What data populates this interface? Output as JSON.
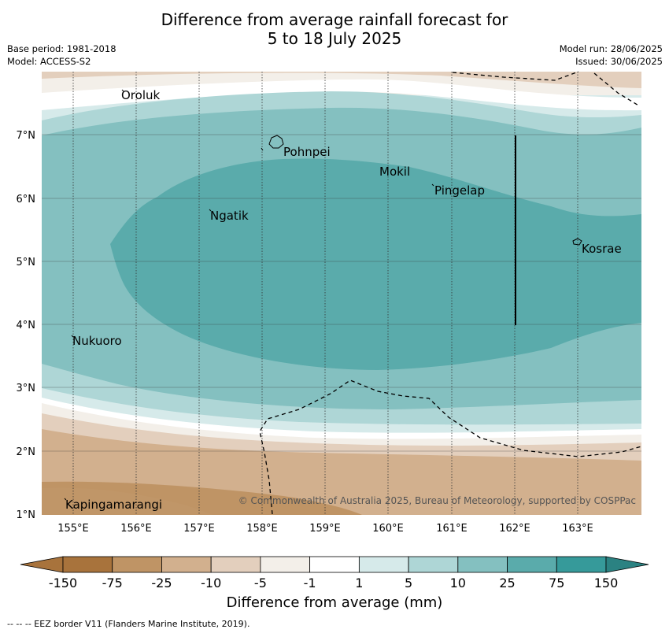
{
  "title": {
    "line1": "Difference from average rainfall forecast for",
    "line2": "5 to 18 July 2025"
  },
  "meta": {
    "base_period": "Base period: 1981-2018",
    "model": "Model: ACCESS-S2",
    "model_run": "Model run: 28/06/2025",
    "issued": "Issued: 30/06/2025"
  },
  "axes": {
    "lat_labels": [
      "7°N",
      "6°N",
      "5°N",
      "4°N",
      "3°N",
      "2°N",
      "1°N"
    ],
    "lon_labels": [
      "155°E",
      "156°E",
      "157°E",
      "158°E",
      "159°E",
      "160°E",
      "161°E",
      "162°E",
      "163°E"
    ]
  },
  "places": [
    "Oroluk",
    "Pohnpei",
    "Mokil",
    "Pingelap",
    "Ngatik",
    "Kosrae",
    "Nukuoro",
    "Kapingamarangi"
  ],
  "copyright": "© Commonwealth of Australia 2025, Bureau of Meteorology, supported by COSPPac",
  "colorbar": {
    "ticks": [
      "-150",
      "-75",
      "-25",
      "-10",
      "-5",
      "-1",
      "1",
      "5",
      "10",
      "25",
      "75",
      "150"
    ],
    "colors": [
      "#a8733c",
      "#bf9465",
      "#d2b08e",
      "#e3cfbd",
      "#f3efe9",
      "#ffffff",
      "#d6eaea",
      "#aed6d6",
      "#84c0c0",
      "#5aabab",
      "#369a9a",
      "#2b8282"
    ],
    "label": "Difference from average (mm)"
  },
  "footer": "--  --  -- EEZ border V11 (Flanders Marine Institute, 2019)."
}
